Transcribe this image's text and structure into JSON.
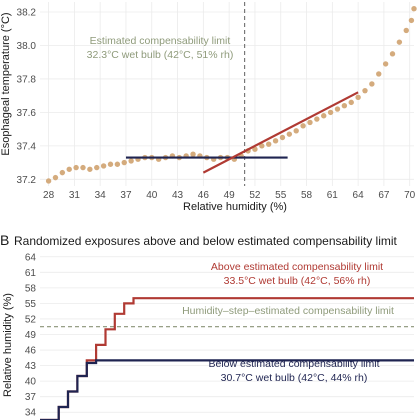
{
  "colors": {
    "dots": "#d4ab7d",
    "red": "#b03a33",
    "navy": "#1f2451",
    "annotation_green": "#8f9b7b",
    "dashed": "#6e6e6e",
    "tick_text": "#4d4d4d"
  },
  "chart_data": [
    {
      "type": "scatter",
      "panel": "",
      "title": "",
      "xlabel": "Relative humidity (%)",
      "ylabel": "Esophageal temperature (°C)",
      "ylabel_display": "Esophageal temperature (°C)",
      "x_ticks": [
        "28",
        "31",
        "34",
        "37",
        "40",
        "43",
        "46",
        "49",
        "52",
        "55",
        "58",
        "61",
        "64",
        "67",
        "70"
      ],
      "y_ticks": [
        "37.2",
        "37.4",
        "37.6",
        "37.8",
        "38.0",
        "38.2"
      ],
      "xlim": [
        27,
        70.5
      ],
      "ylim": [
        37.16,
        38.26
      ],
      "points": [
        [
          28.0,
          37.19
        ],
        [
          28.8,
          37.21
        ],
        [
          29.6,
          37.24
        ],
        [
          30.4,
          37.26
        ],
        [
          31.2,
          37.27
        ],
        [
          32.0,
          37.27
        ],
        [
          32.8,
          37.26
        ],
        [
          33.6,
          37.27
        ],
        [
          34.4,
          37.28
        ],
        [
          35.2,
          37.29
        ],
        [
          36.0,
          37.29
        ],
        [
          36.8,
          37.3
        ],
        [
          37.6,
          37.31
        ],
        [
          38.4,
          37.32
        ],
        [
          39.2,
          37.33
        ],
        [
          40.0,
          37.33
        ],
        [
          40.8,
          37.32
        ],
        [
          41.6,
          37.33
        ],
        [
          42.4,
          37.34
        ],
        [
          43.2,
          37.33
        ],
        [
          44.0,
          37.34
        ],
        [
          44.8,
          37.35
        ],
        [
          45.6,
          37.34
        ],
        [
          46.4,
          37.33
        ],
        [
          47.2,
          37.32
        ],
        [
          48.0,
          37.33
        ],
        [
          48.8,
          37.33
        ],
        [
          49.6,
          37.32
        ],
        [
          50.4,
          37.34
        ],
        [
          51.2,
          37.37
        ],
        [
          52.0,
          37.38
        ],
        [
          52.8,
          37.4
        ],
        [
          53.6,
          37.41
        ],
        [
          54.4,
          37.43
        ],
        [
          55.2,
          37.45
        ],
        [
          56.0,
          37.47
        ],
        [
          56.8,
          37.49
        ],
        [
          57.6,
          37.52
        ],
        [
          58.4,
          37.54
        ],
        [
          59.2,
          37.56
        ],
        [
          60.0,
          37.58
        ],
        [
          60.8,
          37.6
        ],
        [
          61.6,
          37.62
        ],
        [
          62.4,
          37.64
        ],
        [
          63.2,
          37.66
        ],
        [
          64.0,
          37.69
        ],
        [
          64.8,
          37.73
        ],
        [
          65.6,
          37.77
        ],
        [
          66.4,
          37.83
        ],
        [
          67.2,
          37.89
        ],
        [
          68.0,
          37.95
        ],
        [
          68.8,
          38.02
        ],
        [
          69.6,
          38.09
        ],
        [
          70.2,
          38.15
        ],
        [
          70.5,
          38.22
        ]
      ],
      "segment_red": {
        "x": [
          46.0,
          64.0
        ],
        "y": [
          37.24,
          37.72
        ]
      },
      "segment_navy": {
        "x": [
          37.0,
          55.8
        ],
        "y": [
          37.33,
          37.33
        ]
      },
      "vline_x": 50.8,
      "annotation": [
        "Estimated compensability limit",
        "32.3°C wet bulb (42°C, 51% rh)"
      ]
    },
    {
      "type": "line",
      "panel": "B",
      "title": "Randomized exposures above and below estimated compensability limit",
      "xlabel": "",
      "ylabel": "Relative humidity (%)",
      "y_ticks": [
        "34",
        "37",
        "40",
        "43",
        "46",
        "49",
        "52",
        "55",
        "58",
        "61",
        "64"
      ],
      "ylim": [
        32.5,
        65.5
      ],
      "xlim": [
        0,
        20
      ],
      "x_ticks": [],
      "series": [
        {
          "name": "Above estimated compensability limit",
          "color_key": "red",
          "x": [
            0.0,
            1.0,
            1.0,
            1.5,
            1.5,
            2.0,
            2.0,
            2.5,
            2.5,
            3.0,
            3.0,
            3.5,
            3.5,
            4.0,
            4.0,
            4.5,
            4.5,
            5.0,
            5.0,
            20.0
          ],
          "y": [
            32.5,
            32.5,
            35.0,
            35.0,
            38.0,
            38.0,
            41.0,
            41.0,
            44.0,
            44.0,
            47.0,
            47.0,
            50.0,
            50.0,
            53.0,
            53.0,
            55.0,
            55.0,
            56.0,
            56.0
          ]
        },
        {
          "name": "Below estimated compensability limit",
          "color_key": "navy",
          "x": [
            0.0,
            1.0,
            1.0,
            1.5,
            1.5,
            2.0,
            2.0,
            2.5,
            2.5,
            3.0,
            3.0,
            20.0
          ],
          "y": [
            32.5,
            32.5,
            35.0,
            35.0,
            38.0,
            38.0,
            41.0,
            41.0,
            43.5,
            43.5,
            44.0,
            44.0
          ]
        }
      ],
      "hline_y": 50.5,
      "annotations": [
        {
          "color_key": "red",
          "lines": [
            "Above estimated compensability limit",
            "33.5°C wet bulb (42°C, 56% rh)"
          ]
        },
        {
          "color_key": "annotation_green",
          "lines": [
            "Humidity–step–estimated compensability limit"
          ]
        },
        {
          "color_key": "navy",
          "lines": [
            "Below estimated compensability limit",
            "30.7°C wet bulb (42°C, 44% rh)"
          ]
        }
      ]
    }
  ]
}
